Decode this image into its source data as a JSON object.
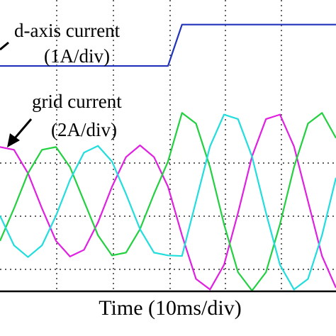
{
  "chart_data": {
    "type": "line",
    "annotations": [
      "d-axis current",
      "(1A/div)",
      "grid current",
      "(2A/div)"
    ],
    "x_label": "Time (10ms/div)",
    "x": [
      0,
      0.25,
      0.5,
      0.75,
      1,
      1.25,
      1.5,
      1.75,
      2,
      2.25,
      2.5,
      2.75,
      3,
      3.25,
      3.5,
      3.75,
      4,
      4.25,
      4.5,
      4.75,
      5,
      5.25,
      5.5,
      5.75,
      6
    ],
    "xlim": [
      0,
      6
    ],
    "ylim": [
      -1.6,
      3.6
    ],
    "series": [
      {
        "name": "d-axis current",
        "color": "#2233bb",
        "values": [
          2.42,
          2.42,
          2.42,
          2.42,
          2.42,
          2.42,
          2.42,
          2.42,
          2.42,
          2.42,
          2.42,
          2.42,
          2.42,
          3.16,
          3.16,
          3.16,
          3.16,
          3.16,
          3.16,
          3.16,
          3.16,
          3.16,
          3.16,
          3.16,
          3.16
        ]
      },
      {
        "name": "grid current a",
        "color": "#e020e0",
        "values": [
          0.97,
          0.92,
          0.5,
          -0.13,
          -0.71,
          -0.99,
          -0.87,
          -0.38,
          0.26,
          0.79,
          1,
          0.79,
          0.26,
          -0.61,
          -1.39,
          -1.58,
          -1.14,
          -0.21,
          0.8,
          1.47,
          1.55,
          0.98,
          0,
          -0.98,
          -1.55
        ]
      },
      {
        "name": "grid current b",
        "color": "#22d040",
        "values": [
          -0.71,
          -0.13,
          0.5,
          0.92,
          0.97,
          0.61,
          0,
          -0.61,
          -0.97,
          -0.92,
          -0.5,
          0.13,
          0.71,
          1.58,
          1.39,
          0.61,
          -0.41,
          -1.27,
          -1.6,
          -1.27,
          -0.41,
          0.61,
          1.39,
          1.58,
          1.13
        ]
      },
      {
        "name": "grid current c",
        "color": "#22dddd",
        "values": [
          -0.26,
          -0.79,
          -1,
          -0.79,
          -0.26,
          0.38,
          0.87,
          0.99,
          0.71,
          0.13,
          -0.5,
          -0.92,
          -0.97,
          -0.98,
          0,
          0.98,
          1.55,
          1.47,
          0.8,
          -0.21,
          -1.14,
          -1.58,
          -1.39,
          -0.61,
          0.42
        ]
      }
    ]
  }
}
